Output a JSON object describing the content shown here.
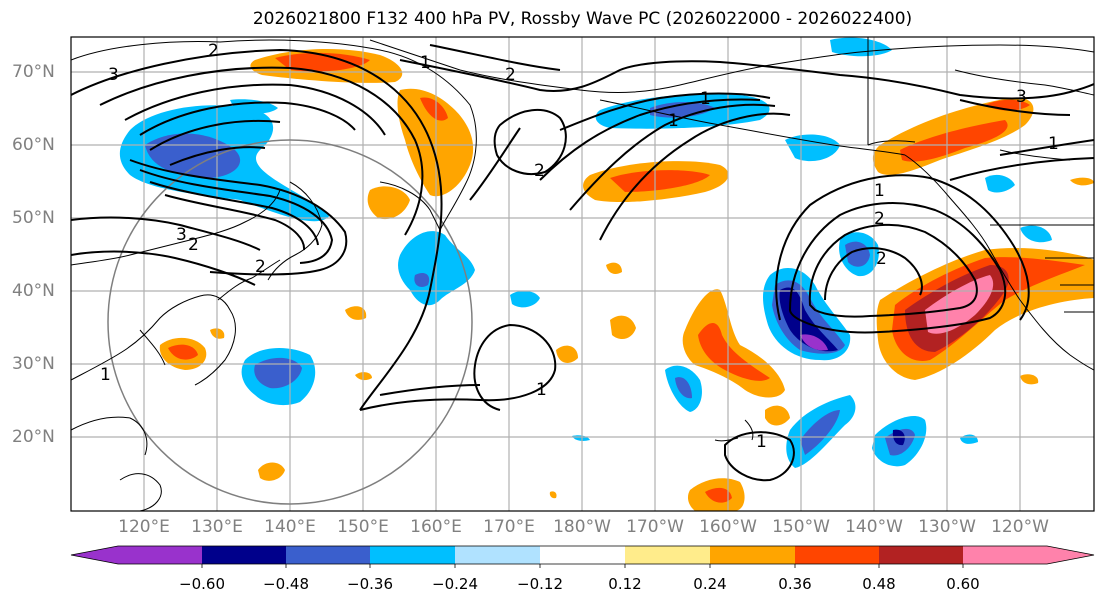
{
  "title": "2026021800 F132 400 hPa PV, Rossby Wave PC (2026022000 - 2026022400)",
  "lat_labels": [
    "70°N",
    "60°N",
    "50°N",
    "40°N",
    "30°N",
    "20°N"
  ],
  "lon_labels": [
    "120°E",
    "130°E",
    "140°E",
    "150°E",
    "160°E",
    "170°E",
    "180°W",
    "170°W",
    "160°W",
    "150°W",
    "140°W",
    "130°W",
    "120°W"
  ],
  "colorbar": {
    "ticks": [
      "−0.60",
      "−0.48",
      "−0.36",
      "−0.24",
      "−0.12",
      "0.12",
      "0.24",
      "0.36",
      "0.48",
      "0.60"
    ],
    "colors": [
      "#9932cc",
      "#00008b",
      "#3a5fcd",
      "#00bfff",
      "#b0e2ff",
      "#ffffff",
      "#ffec8b",
      "#ffa500",
      "#ff4500",
      "#b22222",
      "#ff82ab"
    ]
  },
  "contour_labels": [
    "3",
    "2",
    "1",
    "2",
    "3",
    "3",
    "2",
    "2",
    "1",
    "2",
    "1",
    "1",
    "1",
    "2",
    "1",
    "2",
    "1",
    "1"
  ]
}
